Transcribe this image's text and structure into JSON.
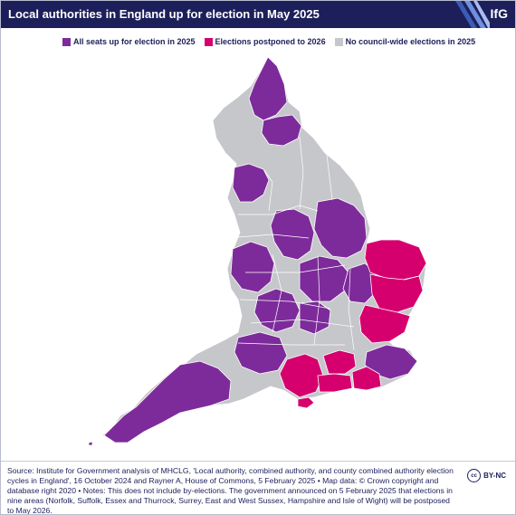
{
  "header": {
    "title": "Local authorities in England up for election in May 2025",
    "logo": "IfG"
  },
  "legend": [
    {
      "label": "All seats up for election in 2025",
      "color": "#7d2b9a"
    },
    {
      "label": "Elections postponed to 2026",
      "color": "#d5006e"
    },
    {
      "label": "No council-wide elections in 2025",
      "color": "#c6c7ca"
    }
  ],
  "colors": {
    "header_bg": "#1c1f5a",
    "boundary": "#ffffff"
  },
  "footer": {
    "source": "Source: Institute for Government analysis of MHCLG, 'Local authority, combined authority, and county combined authority election cycles in England', 16 October 2024 and Rayner A, House of Commons, 5 February 2025 • Map data: © Crown copyright and database right 2020 • Notes: This does not include by-elections. The government announced on 5 February 2025 that elections in nine areas (Norfolk, Suffolk, Essex and Thurrock, Surrey, East and West Sussex, Hampshire and Isle of Wight) will be postposed to May 2026.",
    "license": "BY-NC",
    "license_icon": "cc"
  }
}
